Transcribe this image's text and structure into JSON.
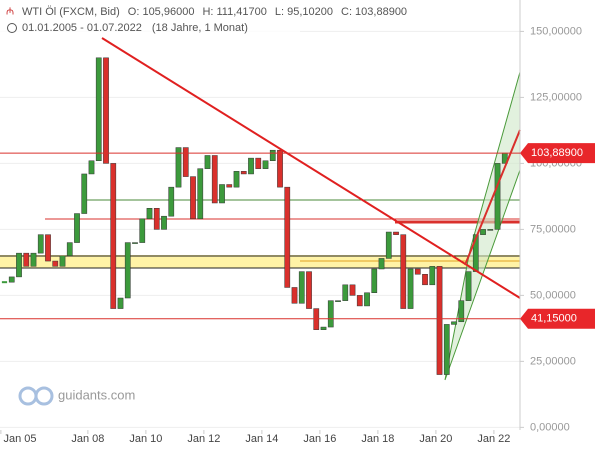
{
  "chart_data": {
    "type": "candlestick",
    "title": "WTI Öl (FXCM, Bid)",
    "ohlc_labels": [
      "O: 105,96000",
      "H: 111,41700",
      "L: 95,10200",
      "C: 103,88900"
    ],
    "period": "01.01.2005 - 01.07.2022",
    "duration": "(18 Jahre, 1 Monat)",
    "watermark": "guidants.com",
    "x": [
      2005.125,
      2005.375,
      2005.625,
      2005.875,
      2006.125,
      2006.375,
      2006.625,
      2006.875,
      2007.125,
      2007.375,
      2007.625,
      2007.875,
      2008.125,
      2008.375,
      2008.625,
      2008.875,
      2009.125,
      2009.375,
      2009.625,
      2009.875,
      2010.125,
      2010.375,
      2010.625,
      2010.875,
      2011.125,
      2011.375,
      2011.625,
      2011.875,
      2012.125,
      2012.375,
      2012.625,
      2012.875,
      2013.125,
      2013.375,
      2013.625,
      2013.875,
      2014.125,
      2014.375,
      2014.625,
      2014.875,
      2015.125,
      2015.375,
      2015.625,
      2015.875,
      2016.125,
      2016.375,
      2016.625,
      2016.875,
      2017.125,
      2017.375,
      2017.625,
      2017.875,
      2018.125,
      2018.375,
      2018.625,
      2018.875,
      2019.125,
      2019.375,
      2019.625,
      2019.875,
      2020.125,
      2020.375,
      2020.625,
      2020.875,
      2021.125,
      2021.375,
      2021.625,
      2021.875,
      2022.125,
      2022.375
    ],
    "values": [
      55,
      57,
      66,
      61,
      66,
      73,
      63,
      61,
      65,
      70,
      81,
      96,
      101,
      140,
      100,
      45,
      49,
      70,
      70,
      79,
      83,
      75,
      80,
      91,
      106,
      95,
      79,
      98,
      103,
      85,
      92,
      91,
      97,
      96,
      102,
      98,
      101,
      105,
      91,
      53,
      47,
      59,
      45,
      37,
      38,
      48,
      48,
      54,
      50,
      46,
      51,
      60,
      64,
      74,
      73,
      45,
      60,
      58,
      54,
      61,
      20,
      39,
      40,
      48,
      59,
      73,
      75,
      75,
      100,
      103.889
    ],
    "up_color": "#3c9a3c",
    "down_color": "#d9302c",
    "xlim": [
      2004.97,
      2022.9
    ],
    "xticks": [
      {
        "value": 2005,
        "label": "Jan 05"
      },
      {
        "value": 2008,
        "label": "Jan 08"
      },
      {
        "value": 2010,
        "label": "Jan 10"
      },
      {
        "value": 2012,
        "label": "Jan 12"
      },
      {
        "value": 2014,
        "label": "Jan 14"
      },
      {
        "value": 2016,
        "label": "Jan 16"
      },
      {
        "value": 2018,
        "label": "Jan 18"
      },
      {
        "value": 2020,
        "label": "Jan 20"
      },
      {
        "value": 2022,
        "label": "Jan 22"
      }
    ],
    "ylim": [
      -1,
      161.9
    ],
    "yticks": [
      {
        "value": 0,
        "label": "0,00000"
      },
      {
        "value": 25,
        "label": "25,00000"
      },
      {
        "value": 50,
        "label": "50,00000"
      },
      {
        "value": 75,
        "label": "75,00000"
      },
      {
        "value": 100,
        "label": "100,00000"
      },
      {
        "value": 125,
        "label": "125,00000"
      },
      {
        "value": 150,
        "label": "150,00000"
      }
    ],
    "grid": true,
    "price_labels": [
      {
        "value": 103.889,
        "label": "103,88900"
      },
      {
        "value": 41.15,
        "label": "41,15000"
      }
    ]
  }
}
